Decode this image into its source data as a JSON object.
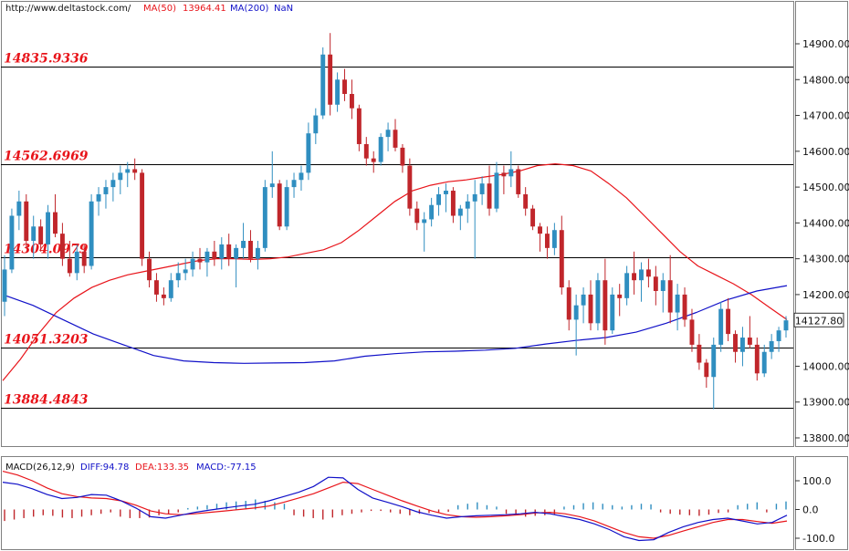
{
  "header": {
    "url": "http://www.deltastock.com/",
    "ma50_label": "MA(50)",
    "ma50_value": "13964.41",
    "ma200_label": "MA(200)",
    "ma200_value": "NaN"
  },
  "macd_header": {
    "title": "MACD(26,12,9)",
    "diff": "DIFF:94.78",
    "dea": "DEA:133.35",
    "macd": "MACD:-77.15"
  },
  "price_axis": {
    "ticks": [
      "14900.00",
      "14800.00",
      "14700.00",
      "14600.00",
      "14500.00",
      "14400.00",
      "14300.00",
      "14200.00",
      "14000.00",
      "13900.00",
      "13800.00"
    ],
    "tick_values": [
      14900,
      14800,
      14700,
      14600,
      14500,
      14400,
      14300,
      14200,
      14000,
      13900,
      13800
    ],
    "current_price": "14127.80"
  },
  "macd_axis": {
    "ticks": [
      "100.0",
      "0.0",
      "-100.0"
    ],
    "tick_values": [
      100,
      0,
      -100
    ]
  },
  "levels": [
    {
      "label": "14835.9336",
      "value": 14835.9336
    },
    {
      "label": "14562.6969",
      "value": 14562.6969
    },
    {
      "label": "14304.0979",
      "value": 14304.0979
    },
    {
      "label": "14051.3203",
      "value": 14051.3203
    },
    {
      "label": "13884.4843",
      "value": 13884.4843
    }
  ],
  "colors": {
    "up": "#2f8ec0",
    "down": "#c0262b",
    "ma50": "#e8141a",
    "ma200": "#1010c8",
    "level_text": "#e8141a",
    "diff": "#1010c8",
    "dea": "#e8141a"
  },
  "chart_data": {
    "type": "candlestick",
    "y_range": [
      13770,
      14950
    ],
    "ohlc": [
      [
        14180,
        14310,
        14140,
        14270
      ],
      [
        14270,
        14440,
        14260,
        14420
      ],
      [
        14420,
        14490,
        14380,
        14460
      ],
      [
        14460,
        14480,
        14330,
        14350
      ],
      [
        14350,
        14420,
        14300,
        14390
      ],
      [
        14390,
        14410,
        14320,
        14340
      ],
      [
        14340,
        14450,
        14300,
        14430
      ],
      [
        14430,
        14480,
        14360,
        14370
      ],
      [
        14370,
        14400,
        14280,
        14300
      ],
      [
        14300,
        14350,
        14250,
        14260
      ],
      [
        14260,
        14340,
        14240,
        14320
      ],
      [
        14320,
        14340,
        14260,
        14280
      ],
      [
        14280,
        14480,
        14270,
        14460
      ],
      [
        14460,
        14500,
        14420,
        14480
      ],
      [
        14480,
        14520,
        14440,
        14500
      ],
      [
        14500,
        14540,
        14460,
        14520
      ],
      [
        14520,
        14560,
        14480,
        14540
      ],
      [
        14540,
        14570,
        14500,
        14550
      ],
      [
        14550,
        14580,
        14520,
        14540
      ],
      [
        14540,
        14550,
        14280,
        14300
      ],
      [
        14300,
        14320,
        14220,
        14240
      ],
      [
        14240,
        14260,
        14180,
        14200
      ],
      [
        14200,
        14220,
        14170,
        14190
      ],
      [
        14190,
        14260,
        14180,
        14240
      ],
      [
        14240,
        14290,
        14220,
        14260
      ],
      [
        14260,
        14300,
        14240,
        14270
      ],
      [
        14270,
        14320,
        14250,
        14300
      ],
      [
        14300,
        14330,
        14270,
        14290
      ],
      [
        14290,
        14330,
        14250,
        14320
      ],
      [
        14320,
        14350,
        14280,
        14300
      ],
      [
        14300,
        14360,
        14270,
        14340
      ],
      [
        14340,
        14370,
        14280,
        14300
      ],
      [
        14300,
        14340,
        14220,
        14330
      ],
      [
        14330,
        14400,
        14300,
        14350
      ],
      [
        14350,
        14380,
        14290,
        14300
      ],
      [
        14300,
        14350,
        14270,
        14330
      ],
      [
        14330,
        14520,
        14320,
        14500
      ],
      [
        14500,
        14600,
        14470,
        14510
      ],
      [
        14510,
        14520,
        14380,
        14390
      ],
      [
        14390,
        14520,
        14380,
        14500
      ],
      [
        14500,
        14540,
        14470,
        14520
      ],
      [
        14520,
        14560,
        14490,
        14540
      ],
      [
        14540,
        14680,
        14520,
        14650
      ],
      [
        14650,
        14720,
        14620,
        14700
      ],
      [
        14700,
        14890,
        14690,
        14870
      ],
      [
        14870,
        14930,
        14700,
        14730
      ],
      [
        14730,
        14820,
        14710,
        14800
      ],
      [
        14800,
        14830,
        14740,
        14760
      ],
      [
        14760,
        14800,
        14690,
        14720
      ],
      [
        14720,
        14730,
        14600,
        14620
      ],
      [
        14620,
        14640,
        14560,
        14580
      ],
      [
        14580,
        14600,
        14540,
        14570
      ],
      [
        14570,
        14650,
        14560,
        14640
      ],
      [
        14640,
        14680,
        14600,
        14660
      ],
      [
        14660,
        14690,
        14600,
        14610
      ],
      [
        14610,
        14620,
        14540,
        14560
      ],
      [
        14560,
        14580,
        14420,
        14440
      ],
      [
        14440,
        14460,
        14380,
        14400
      ],
      [
        14400,
        14430,
        14320,
        14410
      ],
      [
        14410,
        14470,
        14390,
        14450
      ],
      [
        14450,
        14500,
        14420,
        14480
      ],
      [
        14480,
        14510,
        14430,
        14490
      ],
      [
        14490,
        14500,
        14400,
        14420
      ],
      [
        14420,
        14450,
        14380,
        14440
      ],
      [
        14440,
        14480,
        14400,
        14460
      ],
      [
        14460,
        14520,
        14300,
        14480
      ],
      [
        14480,
        14530,
        14450,
        14510
      ],
      [
        14510,
        14560,
        14420,
        14440
      ],
      [
        14440,
        14570,
        14430,
        14540
      ],
      [
        14540,
        14560,
        14480,
        14530
      ],
      [
        14530,
        14600,
        14500,
        14550
      ],
      [
        14550,
        14560,
        14470,
        14480
      ],
      [
        14480,
        14500,
        14420,
        14440
      ],
      [
        14440,
        14450,
        14380,
        14390
      ],
      [
        14390,
        14400,
        14320,
        14370
      ],
      [
        14370,
        14390,
        14300,
        14330
      ],
      [
        14330,
        14400,
        14310,
        14380
      ],
      [
        14380,
        14420,
        14200,
        14220
      ],
      [
        14220,
        14240,
        14100,
        14130
      ],
      [
        14130,
        14200,
        14030,
        14170
      ],
      [
        14170,
        14220,
        14120,
        14200
      ],
      [
        14200,
        14240,
        14100,
        14120
      ],
      [
        14120,
        14260,
        14100,
        14240
      ],
      [
        14240,
        14300,
        14060,
        14100
      ],
      [
        14100,
        14220,
        14090,
        14200
      ],
      [
        14200,
        14230,
        14140,
        14190
      ],
      [
        14190,
        14280,
        14170,
        14260
      ],
      [
        14260,
        14320,
        14200,
        14240
      ],
      [
        14240,
        14290,
        14180,
        14270
      ],
      [
        14270,
        14300,
        14220,
        14250
      ],
      [
        14250,
        14280,
        14170,
        14210
      ],
      [
        14210,
        14260,
        14150,
        14240
      ],
      [
        14240,
        14310,
        14120,
        14150
      ],
      [
        14150,
        14230,
        14100,
        14200
      ],
      [
        14200,
        14220,
        14110,
        14130
      ],
      [
        14130,
        14160,
        14040,
        14060
      ],
      [
        14060,
        14090,
        13990,
        14010
      ],
      [
        14010,
        14020,
        13940,
        13970
      ],
      [
        13970,
        14080,
        13880,
        14060
      ],
      [
        14060,
        14180,
        14040,
        14160
      ],
      [
        14160,
        14190,
        14070,
        14090
      ],
      [
        14090,
        14100,
        14010,
        14040
      ],
      [
        14040,
        14110,
        14000,
        14080
      ],
      [
        14080,
        14140,
        14050,
        14060
      ],
      [
        14060,
        14080,
        13960,
        13980
      ],
      [
        13980,
        14060,
        13970,
        14040
      ],
      [
        14040,
        14090,
        14020,
        14070
      ],
      [
        14070,
        14110,
        14040,
        14100
      ],
      [
        14100,
        14140,
        14080,
        14128
      ]
    ],
    "ma50_series": {
      "name": "MA(50)",
      "values": [
        13960,
        14020,
        14090,
        14150,
        14190,
        14220,
        14240,
        14255,
        14265,
        14275,
        14285,
        14295,
        14300,
        14300,
        14298,
        14300,
        14305,
        14315,
        14325,
        14345,
        14380,
        14420,
        14460,
        14490,
        14505,
        14515,
        14520,
        14528,
        14535,
        14545,
        14560,
        14565,
        14560,
        14545,
        14510,
        14470,
        14420,
        14370,
        14320,
        14280,
        14255,
        14230,
        14200,
        14165,
        14130
      ]
    },
    "ma200_series": {
      "name": "MA(200)",
      "values": [
        14200,
        14170,
        14130,
        14090,
        14060,
        14030,
        14015,
        14010,
        14008,
        14009,
        14010,
        14015,
        14028,
        14035,
        14040,
        14042,
        14045,
        14050,
        14062,
        14072,
        14080,
        14095,
        14120,
        14150,
        14185,
        14210,
        14225
      ]
    },
    "macd_y_range": [
      -118,
      122
    ],
    "diff_series": {
      "name": "DIFF",
      "values": [
        95,
        88,
        72,
        52,
        38,
        42,
        52,
        50,
        30,
        5,
        -25,
        -30,
        -20,
        -10,
        -2,
        5,
        12,
        18,
        30,
        45,
        60,
        80,
        112,
        110,
        70,
        40,
        25,
        10,
        -8,
        -20,
        -30,
        -25,
        -22,
        -20,
        -18,
        -15,
        -10,
        -15,
        -25,
        -35,
        -50,
        -70,
        -95,
        -108,
        -105,
        -80,
        -60,
        -45,
        -35,
        -30,
        -40,
        -50,
        -45,
        -20
      ]
    },
    "dea_series": {
      "name": "DEA",
      "values": [
        133,
        120,
        100,
        75,
        55,
        45,
        40,
        38,
        30,
        15,
        -5,
        -15,
        -18,
        -15,
        -10,
        -5,
        0,
        5,
        12,
        25,
        40,
        55,
        75,
        95,
        90,
        70,
        50,
        30,
        12,
        -5,
        -18,
        -25,
        -27,
        -25,
        -22,
        -18,
        -12,
        -10,
        -15,
        -25,
        -40,
        -60,
        -80,
        -95,
        -100,
        -90,
        -75,
        -60,
        -45,
        -35,
        -35,
        -42,
        -48,
        -40
      ]
    },
    "macd_histogram": [
      -40,
      -35,
      -30,
      -25,
      -20,
      -22,
      -28,
      -30,
      -25,
      -20,
      -15,
      -10,
      -25,
      -30,
      -30,
      -28,
      -20,
      -15,
      -10,
      5,
      10,
      15,
      20,
      25,
      28,
      30,
      35,
      30,
      25,
      20,
      -20,
      -25,
      -30,
      -35,
      -28,
      -20,
      -15,
      -10,
      -5,
      -5,
      -10,
      -15,
      -20,
      -15,
      -12,
      -10,
      -8,
      15,
      20,
      25,
      15,
      10,
      -15,
      -20,
      -25,
      -22,
      -20,
      -18,
      10,
      15,
      22,
      25,
      20,
      15,
      10,
      15,
      20,
      18,
      -10,
      -15,
      -18,
      -20,
      -22,
      -18,
      -12,
      -10,
      15,
      20,
      25,
      -10,
      20,
      28
    ]
  }
}
